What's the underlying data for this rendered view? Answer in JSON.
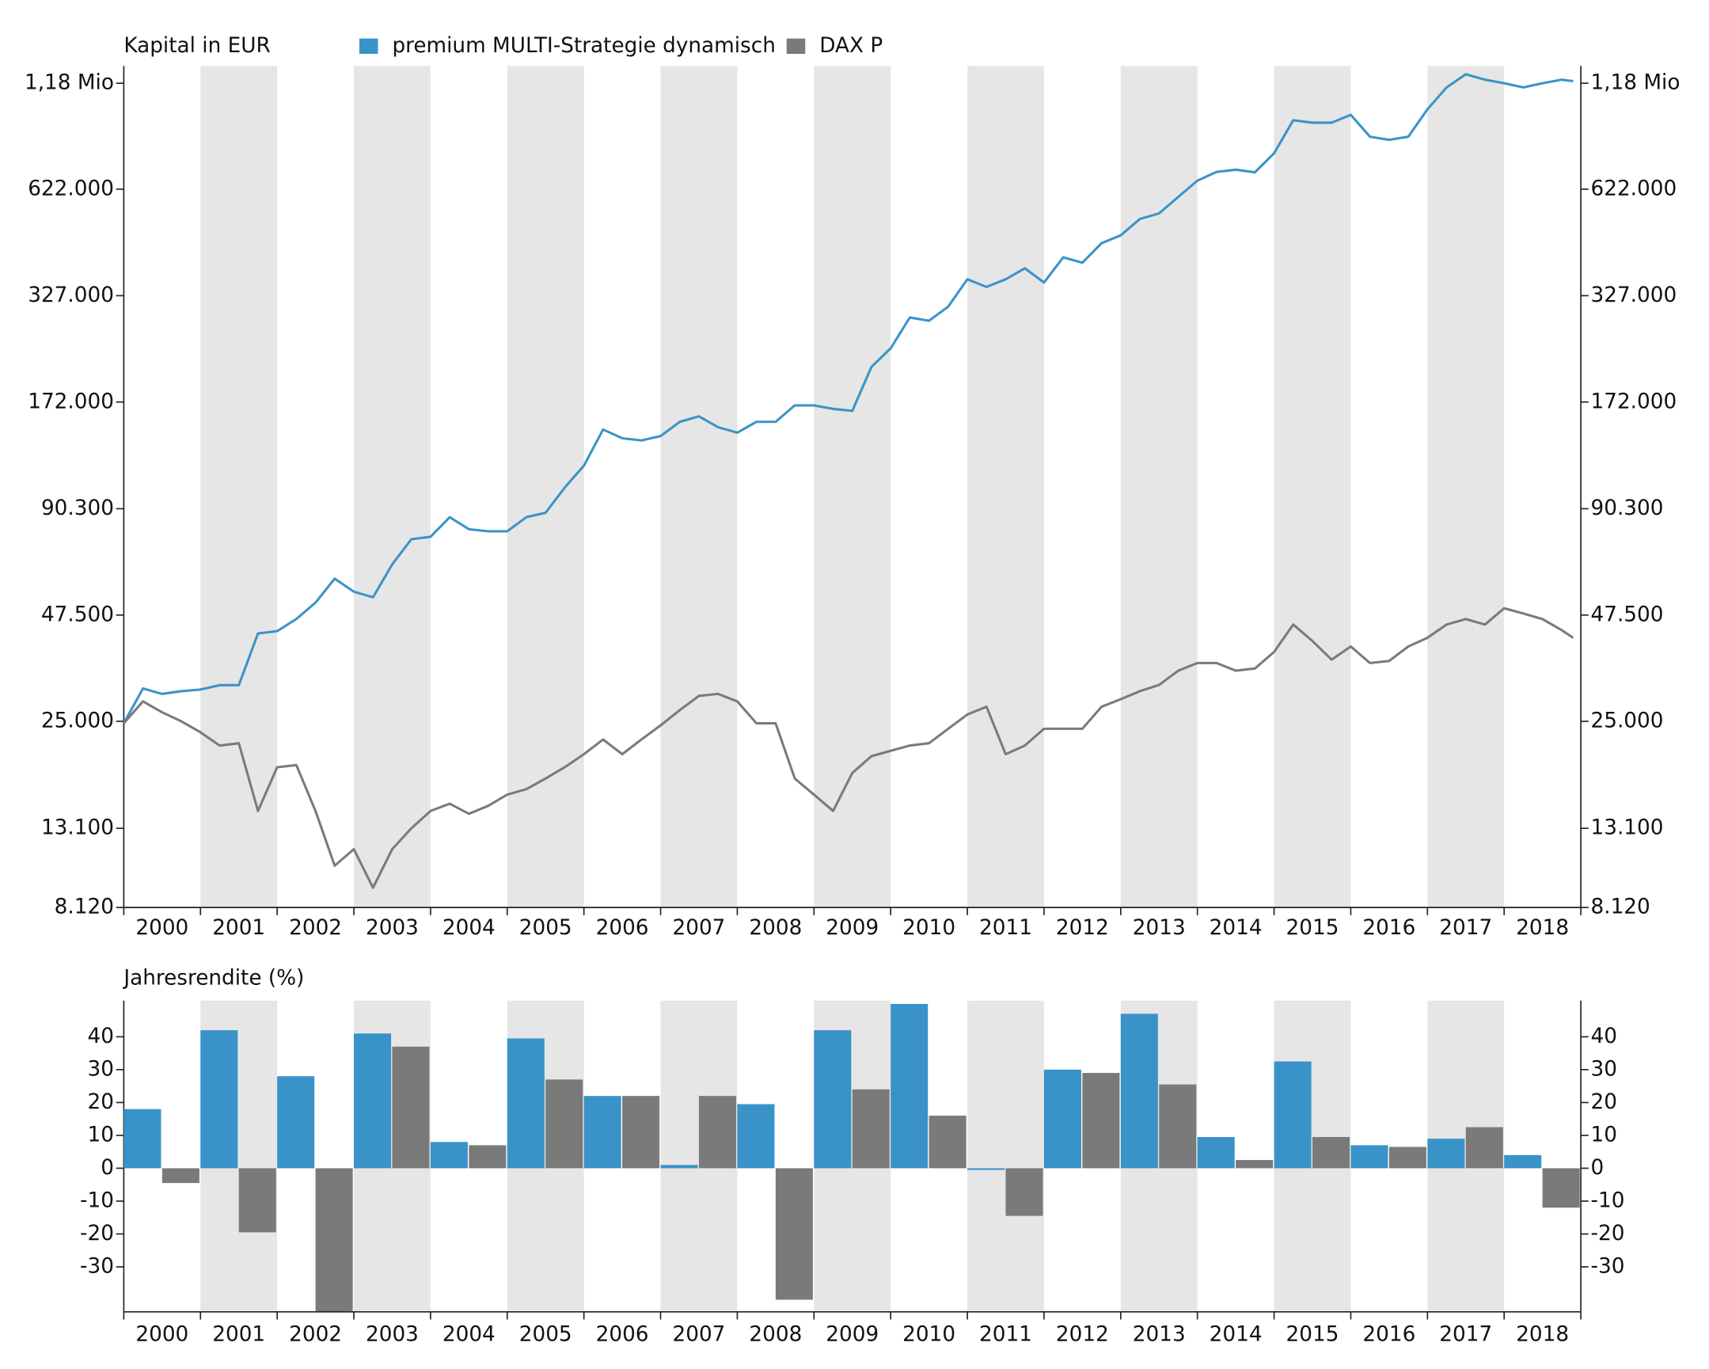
{
  "chart_data": [
    {
      "type": "line",
      "title": "Kapital in EUR",
      "log": true,
      "legend": "top",
      "categories": [
        "2000",
        "2001",
        "2002",
        "2003",
        "2004",
        "2005",
        "2006",
        "2007",
        "2008",
        "2009",
        "2010",
        "2011",
        "2012",
        "2013",
        "2014",
        "2015",
        "2016",
        "2017",
        "2018"
      ],
      "xlim": [
        2000,
        2019
      ],
      "x": [
        2000,
        2000.25,
        2000.5,
        2000.75,
        2001,
        2001.25,
        2001.5,
        2001.75,
        2002,
        2002.25,
        2002.5,
        2002.75,
        2003,
        2003.25,
        2003.5,
        2003.75,
        2004,
        2004.25,
        2004.5,
        2004.75,
        2005,
        2005.25,
        2005.5,
        2005.75,
        2006,
        2006.25,
        2006.5,
        2006.75,
        2007,
        2007.25,
        2007.5,
        2007.75,
        2008,
        2008.25,
        2008.5,
        2008.75,
        2009,
        2009.25,
        2009.5,
        2009.75,
        2010,
        2010.25,
        2010.5,
        2010.75,
        2011,
        2011.25,
        2011.5,
        2011.75,
        2012,
        2012.25,
        2012.5,
        2012.75,
        2013,
        2013.25,
        2013.5,
        2013.75,
        2014,
        2014.25,
        2014.5,
        2014.75,
        2015,
        2015.25,
        2015.5,
        2015.75,
        2016,
        2016.25,
        2016.5,
        2016.75,
        2017,
        2017.25,
        2017.5,
        2017.75,
        2018,
        2018.25,
        2018.5,
        2018.75,
        2018.9
      ],
      "series": [
        {
          "name": "premium MULTI-Strategie dynamisch",
          "color": "#3a93c8",
          "values": [
            24700,
            30500,
            29500,
            30000,
            30300,
            31100,
            31100,
            42500,
            43100,
            46400,
            51200,
            59200,
            54700,
            52900,
            64500,
            75100,
            76200,
            85800,
            79800,
            78800,
            78800,
            85800,
            88100,
            102600,
            117100,
            145700,
            138200,
            136400,
            140000,
            152600,
            157700,
            147700,
            142900,
            152600,
            152600,
            168500,
            168500,
            165000,
            163100,
            212700,
            238000,
            286500,
            281000,
            306000,
            361000,
            344600,
            361000,
            385800,
            354000,
            412300,
            398900,
            449000,
            470800,
            519700,
            537300,
            593600,
            655300,
            690800,
            700000,
            689000,
            773000,
            943500,
            930000,
            930000,
            975000,
            854000,
            838000,
            854000,
            1007700,
            1150600,
            1245700,
            1205000,
            1180000,
            1150600,
            1180000,
            1205000,
            1195000
          ]
        },
        {
          "name": "DAX P",
          "color": "#7a7a7a",
          "values": [
            24700,
            28200,
            26400,
            25000,
            23400,
            21600,
            21900,
            14550,
            18950,
            19200,
            14550,
            10450,
            11550,
            9150,
            11550,
            13100,
            14550,
            15200,
            14300,
            15000,
            16060,
            16600,
            17700,
            18950,
            20500,
            22400,
            20500,
            22400,
            24400,
            26750,
            29150,
            29500,
            28200,
            24700,
            24700,
            17700,
            16060,
            14550,
            18300,
            20250,
            20930,
            21600,
            21900,
            23900,
            26050,
            27300,
            20500,
            21600,
            23900,
            23900,
            23900,
            27300,
            28570,
            30000,
            31150,
            33950,
            35550,
            35550,
            33950,
            34400,
            38000,
            44850,
            40600,
            36300,
            39300,
            35550,
            36000,
            39300,
            41400,
            44850,
            46350,
            44850,
            49500,
            47950,
            46350,
            43350,
            41400
          ]
        }
      ],
      "ylim": [
        8120,
        1310000
      ],
      "yticks": [
        {
          "value": 8120,
          "label": "8.120"
        },
        {
          "value": 13100,
          "label": "13.100"
        },
        {
          "value": 25000,
          "label": "25.000"
        },
        {
          "value": 47500,
          "label": "47.500"
        },
        {
          "value": 90300,
          "label": "90.300"
        },
        {
          "value": 172000,
          "label": "172.000"
        },
        {
          "value": 327000,
          "label": "327.000"
        },
        {
          "value": 622000,
          "label": "622.000"
        },
        {
          "value": 1180000,
          "label": "1,18 Mio"
        }
      ]
    },
    {
      "type": "bar",
      "title": "Jahresrendite (%)",
      "categories": [
        "2000",
        "2001",
        "2002",
        "2003",
        "2004",
        "2005",
        "2006",
        "2007",
        "2008",
        "2009",
        "2010",
        "2011",
        "2012",
        "2013",
        "2014",
        "2015",
        "2016",
        "2017",
        "2018"
      ],
      "series": [
        {
          "color": "#3a93c8",
          "values": [
            18,
            42,
            28,
            41,
            8,
            39.5,
            22,
            1,
            19.5,
            42,
            50,
            -0.5,
            30,
            47,
            9.5,
            32.5,
            7,
            9,
            4
          ]
        },
        {
          "color": "#7a7a7a",
          "values": [
            -4.5,
            -19.5,
            -43.5,
            37,
            7,
            27,
            22,
            22,
            -40,
            24,
            16,
            -14.5,
            29,
            25.5,
            2.5,
            9.5,
            6.5,
            12.5,
            -12
          ]
        }
      ],
      "ylim": [
        -43.7,
        51
      ],
      "yticks": [
        -30,
        -20,
        -10,
        0,
        10,
        20,
        30,
        40
      ]
    }
  ]
}
